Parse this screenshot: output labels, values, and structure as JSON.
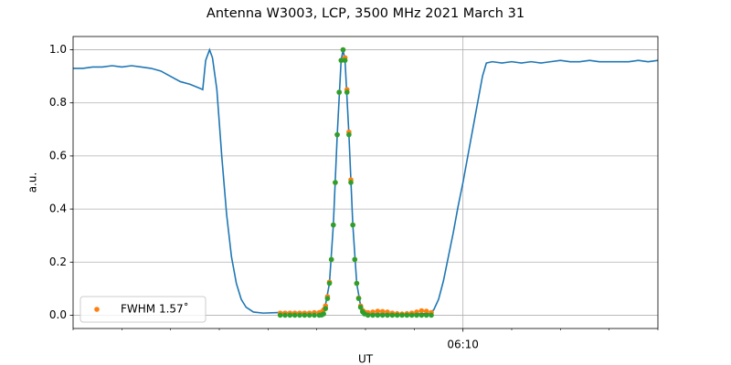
{
  "chart_data": {
    "type": "line",
    "title": "Antenna W3003, LCP, 3500 MHz 2021 March 31",
    "xlabel": "UT",
    "ylabel": "a.u.",
    "xlim": [
      2,
      14
    ],
    "xticks": [
      {
        "value": 10,
        "label": "06:10"
      }
    ],
    "xminorticks": [
      2,
      3,
      4,
      5,
      6,
      7,
      8,
      9,
      11,
      12,
      13,
      14
    ],
    "ylim": [
      -0.05,
      1.05
    ],
    "yticks": [
      {
        "value": 0,
        "label": "0.0"
      },
      {
        "value": 0.2,
        "label": "0.2"
      },
      {
        "value": 0.4,
        "label": "0.4"
      },
      {
        "value": 0.6,
        "label": "0.6"
      },
      {
        "value": 0.8,
        "label": "0.8"
      },
      {
        "value": 1,
        "label": "1.0"
      }
    ],
    "grid": true,
    "legend": "lower left",
    "series": [
      {
        "type": "line",
        "color": "#1f77b4",
        "x": [
          2.0,
          2.2,
          2.4,
          2.6,
          2.8,
          3.0,
          3.2,
          3.4,
          3.6,
          3.8,
          4.0,
          4.2,
          4.4,
          4.6,
          4.66,
          4.72,
          4.8,
          4.86,
          4.95,
          5.05,
          5.15,
          5.25,
          5.35,
          5.45,
          5.55,
          5.7,
          5.9,
          6.2,
          6.6,
          7.0,
          7.1,
          7.18,
          7.26,
          7.34,
          7.42,
          7.5,
          7.54,
          7.58,
          7.66,
          7.74,
          7.82,
          7.9,
          7.98,
          8.1,
          8.5,
          9.0,
          9.3,
          9.4,
          9.5,
          9.6,
          9.7,
          9.8,
          9.9,
          10.0,
          10.1,
          10.2,
          10.3,
          10.4,
          10.48,
          10.6,
          10.8,
          11.0,
          11.2,
          11.4,
          11.6,
          11.8,
          12.0,
          12.2,
          12.4,
          12.6,
          12.8,
          13.0,
          13.2,
          13.4,
          13.6,
          13.8,
          14.0
        ],
        "values": [
          0.93,
          0.93,
          0.935,
          0.935,
          0.94,
          0.935,
          0.94,
          0.935,
          0.93,
          0.92,
          0.9,
          0.88,
          0.87,
          0.855,
          0.85,
          0.96,
          1.0,
          0.97,
          0.85,
          0.6,
          0.38,
          0.22,
          0.12,
          0.06,
          0.03,
          0.012,
          0.008,
          0.01,
          0.01,
          0.01,
          0.015,
          0.04,
          0.12,
          0.34,
          0.68,
          0.96,
          1.0,
          0.96,
          0.68,
          0.34,
          0.12,
          0.035,
          0.01,
          0.005,
          0.005,
          0.005,
          0.006,
          0.02,
          0.06,
          0.13,
          0.22,
          0.31,
          0.41,
          0.5,
          0.6,
          0.7,
          0.8,
          0.9,
          0.95,
          0.955,
          0.95,
          0.955,
          0.95,
          0.955,
          0.95,
          0.955,
          0.96,
          0.955,
          0.955,
          0.96,
          0.955,
          0.955,
          0.955,
          0.955,
          0.96,
          0.955,
          0.96
        ]
      },
      {
        "type": "scatter",
        "name": "FWHM 1.57˚",
        "color": "#ff7f0e",
        "x": [
          6.25,
          6.35,
          6.45,
          6.55,
          6.65,
          6.75,
          6.85,
          6.95,
          7.05,
          7.1,
          7.14,
          7.18,
          7.22,
          7.26,
          7.3,
          7.34,
          7.38,
          7.42,
          7.46,
          7.5,
          7.54,
          7.58,
          7.62,
          7.66,
          7.7,
          7.74,
          7.78,
          7.82,
          7.86,
          7.9,
          7.94,
          7.98,
          8.05,
          8.15,
          8.25,
          8.35,
          8.45,
          8.55,
          8.65,
          8.75,
          8.85,
          8.95,
          9.05,
          9.15,
          9.25,
          9.35
        ],
        "values": [
          0.008,
          0.008,
          0.008,
          0.008,
          0.008,
          0.008,
          0.008,
          0.01,
          0.01,
          0.012,
          0.02,
          0.035,
          0.07,
          0.125,
          0.21,
          0.34,
          0.5,
          0.68,
          0.84,
          0.96,
          1.0,
          0.97,
          0.85,
          0.69,
          0.51,
          0.34,
          0.21,
          0.12,
          0.065,
          0.035,
          0.018,
          0.012,
          0.01,
          0.012,
          0.015,
          0.014,
          0.012,
          0.008,
          0.006,
          0.005,
          0.006,
          0.008,
          0.012,
          0.017,
          0.015,
          0.01
        ]
      },
      {
        "type": "scatter",
        "color": "#2ca02c",
        "x": [
          6.25,
          6.35,
          6.45,
          6.55,
          6.65,
          6.75,
          6.85,
          6.95,
          7.05,
          7.1,
          7.14,
          7.18,
          7.22,
          7.26,
          7.3,
          7.34,
          7.38,
          7.42,
          7.46,
          7.5,
          7.54,
          7.58,
          7.62,
          7.66,
          7.7,
          7.74,
          7.78,
          7.82,
          7.86,
          7.9,
          7.94,
          7.98,
          8.05,
          8.15,
          8.25,
          8.35,
          8.45,
          8.55,
          8.65,
          8.75,
          8.85,
          8.95,
          9.05,
          9.15,
          9.25,
          9.35
        ],
        "values": [
          0,
          0,
          0,
          0,
          0,
          0,
          0,
          0,
          0,
          0.001,
          0.005,
          0.025,
          0.063,
          0.12,
          0.21,
          0.34,
          0.5,
          0.68,
          0.84,
          0.96,
          1.0,
          0.96,
          0.84,
          0.68,
          0.5,
          0.34,
          0.21,
          0.12,
          0.063,
          0.03,
          0.013,
          0.005,
          0,
          0,
          0,
          0,
          0,
          0,
          0,
          0,
          0,
          0,
          0,
          0,
          0,
          0
        ]
      }
    ]
  }
}
